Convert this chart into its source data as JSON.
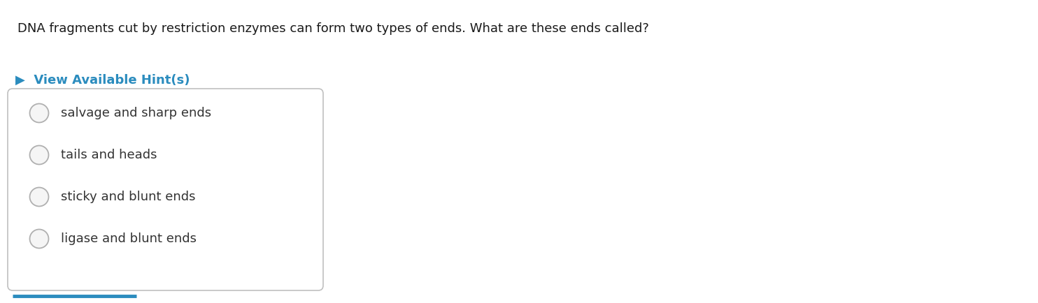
{
  "background_color": "#ffffff",
  "question_text": "DNA fragments cut by restriction enzymes can form two types of ends. What are these ends called?",
  "hint_text": "View Available Hint(s)",
  "hint_color": "#2b8cbe",
  "hint_arrow": "▶",
  "options": [
    "salvage and sharp ends",
    "tails and heads",
    "sticky and blunt ends",
    "ligase and blunt ends"
  ],
  "question_fontsize": 13.0,
  "hint_fontsize": 13.0,
  "option_fontsize": 13.0,
  "question_color": "#1a1a1a",
  "option_text_color": "#333333",
  "box_edge_color": "#c0c0c0",
  "circle_edge_color": "#b0b0b0",
  "circle_face_color": "#f5f5f5",
  "bottom_line_color": "#2b8cbe",
  "fig_width": 14.84,
  "fig_height": 4.34,
  "dpi": 100
}
